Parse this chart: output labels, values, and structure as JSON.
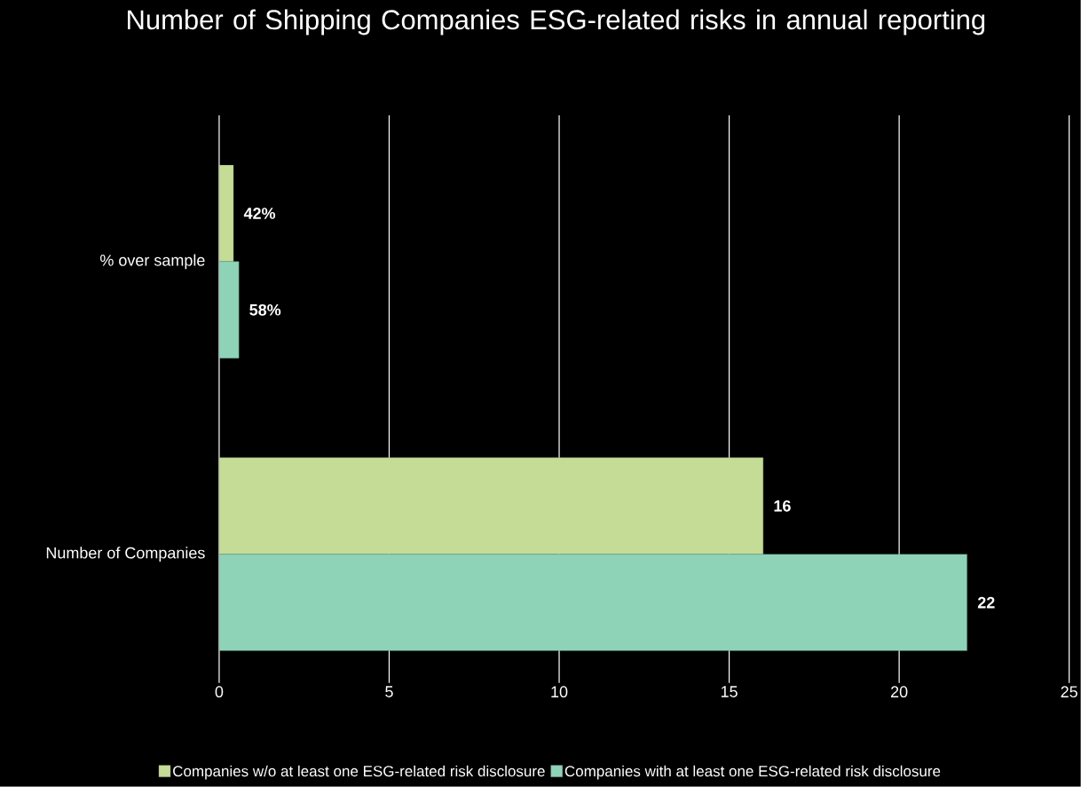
{
  "chart_data": {
    "type": "bar",
    "orientation": "horizontal",
    "title": "Number of Shipping Companies ESG-related risks in annual reporting",
    "categories": [
      "% over sample",
      "Number of Companies"
    ],
    "series": [
      {
        "name": "Companies w/o at least one ESG-related risk disclosure",
        "color": "#c4dc96",
        "values": [
          0.42,
          16
        ],
        "value_labels": [
          "42%",
          "16"
        ]
      },
      {
        "name": "Companies with at least one ESG-related risk disclosure",
        "color": "#8ed3b8",
        "values": [
          0.58,
          22
        ],
        "value_labels": [
          "58%",
          "22"
        ]
      }
    ],
    "xlim": [
      0,
      25
    ],
    "xticks": [
      0,
      5,
      10,
      15,
      20,
      25
    ],
    "grid": "x",
    "legend": "bottom"
  }
}
